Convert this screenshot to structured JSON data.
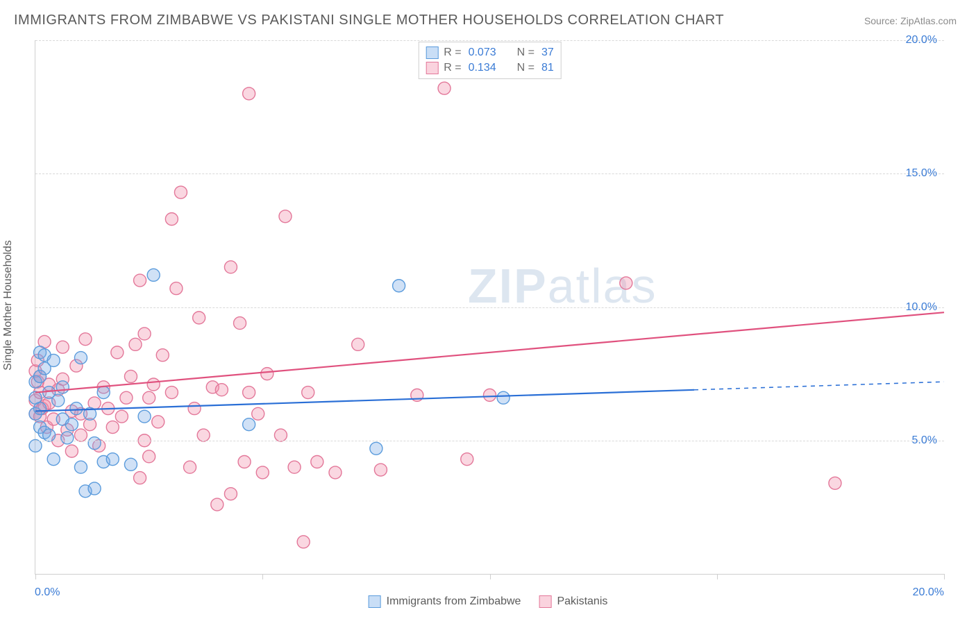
{
  "title": "IMMIGRANTS FROM ZIMBABWE VS PAKISTANI SINGLE MOTHER HOUSEHOLDS CORRELATION CHART",
  "source_label": "Source: ZipAtlas.com",
  "watermark_zip": "ZIP",
  "watermark_atlas": "atlas",
  "y_axis_title": "Single Mother Households",
  "chart": {
    "type": "scatter",
    "xlim": [
      0,
      20
    ],
    "ylim": [
      0,
      20
    ],
    "x_ticks": [
      0,
      5,
      10,
      15,
      20
    ],
    "x_tick_labels": [
      "0.0%",
      "",
      "",
      "",
      "20.0%"
    ],
    "y_ticks": [
      5,
      10,
      15,
      20
    ],
    "y_tick_labels": [
      "5.0%",
      "10.0%",
      "15.0%",
      "20.0%"
    ],
    "background_color": "#ffffff",
    "grid_color": "#d9d9d9",
    "axis_color": "#cfcfcf",
    "marker_radius": 9,
    "marker_stroke_width": 1.4,
    "trend_line_width": 2.2,
    "series": [
      {
        "name": "Immigrants from Zimbabwe",
        "fill": "rgba(120,170,230,0.35)",
        "stroke": "#5a9bdc",
        "R": "0.073",
        "N": "37",
        "trend": {
          "y_at_x0": 6.1,
          "y_at_x20": 7.2,
          "solid_until_x": 14.5,
          "color": "#2a6fd6"
        },
        "points": [
          [
            0.0,
            7.2
          ],
          [
            0.0,
            6.6
          ],
          [
            0.0,
            6.0
          ],
          [
            0.0,
            4.8
          ],
          [
            0.1,
            8.3
          ],
          [
            0.1,
            7.4
          ],
          [
            0.1,
            6.2
          ],
          [
            0.1,
            5.5
          ],
          [
            0.2,
            7.7
          ],
          [
            0.2,
            8.2
          ],
          [
            0.2,
            5.3
          ],
          [
            0.3,
            6.8
          ],
          [
            0.3,
            5.2
          ],
          [
            0.4,
            8.0
          ],
          [
            0.4,
            4.3
          ],
          [
            0.5,
            6.5
          ],
          [
            0.6,
            5.8
          ],
          [
            0.6,
            7.0
          ],
          [
            0.7,
            5.1
          ],
          [
            0.8,
            5.6
          ],
          [
            0.9,
            6.2
          ],
          [
            1.0,
            8.1
          ],
          [
            1.0,
            4.0
          ],
          [
            1.1,
            3.1
          ],
          [
            1.2,
            6.0
          ],
          [
            1.3,
            4.9
          ],
          [
            1.3,
            3.2
          ],
          [
            1.5,
            4.2
          ],
          [
            1.5,
            6.8
          ],
          [
            1.7,
            4.3
          ],
          [
            2.1,
            4.1
          ],
          [
            2.4,
            5.9
          ],
          [
            2.6,
            11.2
          ],
          [
            4.7,
            5.6
          ],
          [
            7.5,
            4.7
          ],
          [
            8.0,
            10.8
          ],
          [
            10.3,
            6.6
          ]
        ]
      },
      {
        "name": "Pakistanis",
        "fill": "rgba(240,140,170,0.35)",
        "stroke": "#e37799",
        "R": "0.134",
        "N": "81",
        "trend": {
          "y_at_x0": 6.8,
          "y_at_x20": 9.8,
          "solid_until_x": 20,
          "color": "#e0517e"
        },
        "points": [
          [
            0.0,
            7.6
          ],
          [
            0.0,
            6.5
          ],
          [
            0.0,
            6.0
          ],
          [
            0.05,
            8.0
          ],
          [
            0.05,
            7.2
          ],
          [
            0.1,
            6.8
          ],
          [
            0.1,
            5.9
          ],
          [
            0.1,
            7.4
          ],
          [
            0.15,
            6.2
          ],
          [
            0.2,
            8.7
          ],
          [
            0.2,
            6.3
          ],
          [
            0.25,
            5.5
          ],
          [
            0.3,
            7.1
          ],
          [
            0.3,
            6.4
          ],
          [
            0.4,
            5.8
          ],
          [
            0.5,
            6.9
          ],
          [
            0.5,
            5.0
          ],
          [
            0.6,
            7.3
          ],
          [
            0.6,
            8.5
          ],
          [
            0.7,
            5.4
          ],
          [
            0.8,
            6.1
          ],
          [
            0.8,
            4.6
          ],
          [
            0.9,
            7.8
          ],
          [
            1.0,
            6.0
          ],
          [
            1.0,
            5.2
          ],
          [
            1.1,
            8.8
          ],
          [
            1.2,
            5.6
          ],
          [
            1.3,
            6.4
          ],
          [
            1.4,
            4.8
          ],
          [
            1.5,
            7.0
          ],
          [
            1.6,
            6.2
          ],
          [
            1.7,
            5.5
          ],
          [
            1.8,
            8.3
          ],
          [
            1.9,
            5.9
          ],
          [
            2.0,
            6.6
          ],
          [
            2.1,
            7.4
          ],
          [
            2.2,
            8.6
          ],
          [
            2.3,
            11.0
          ],
          [
            2.3,
            3.6
          ],
          [
            2.4,
            9.0
          ],
          [
            2.4,
            5.0
          ],
          [
            2.5,
            4.4
          ],
          [
            2.5,
            6.6
          ],
          [
            2.6,
            7.1
          ],
          [
            2.7,
            5.7
          ],
          [
            2.8,
            8.2
          ],
          [
            3.0,
            13.3
          ],
          [
            3.0,
            6.8
          ],
          [
            3.1,
            10.7
          ],
          [
            3.2,
            14.3
          ],
          [
            3.4,
            4.0
          ],
          [
            3.5,
            6.2
          ],
          [
            3.6,
            9.6
          ],
          [
            3.7,
            5.2
          ],
          [
            3.9,
            7.0
          ],
          [
            4.0,
            2.6
          ],
          [
            4.1,
            6.9
          ],
          [
            4.3,
            3.0
          ],
          [
            4.3,
            11.5
          ],
          [
            4.5,
            9.4
          ],
          [
            4.6,
            4.2
          ],
          [
            4.7,
            6.8
          ],
          [
            4.7,
            18.0
          ],
          [
            4.9,
            6.0
          ],
          [
            5.0,
            3.8
          ],
          [
            5.1,
            7.5
          ],
          [
            5.5,
            13.4
          ],
          [
            5.7,
            4.0
          ],
          [
            5.9,
            1.2
          ],
          [
            6.0,
            6.8
          ],
          [
            6.2,
            4.2
          ],
          [
            6.6,
            3.8
          ],
          [
            7.1,
            8.6
          ],
          [
            7.6,
            3.9
          ],
          [
            8.4,
            6.7
          ],
          [
            9.0,
            18.2
          ],
          [
            9.5,
            4.3
          ],
          [
            10.0,
            6.7
          ],
          [
            13.0,
            10.9
          ],
          [
            17.6,
            3.4
          ],
          [
            5.4,
            5.2
          ]
        ]
      }
    ]
  },
  "legend_top": {
    "rows": [
      {
        "swatch": "blue",
        "r_label": "R =",
        "r_value": "0.073",
        "n_label": "N =",
        "n_value": "37"
      },
      {
        "swatch": "pink",
        "r_label": "R =",
        "r_value": "0.134",
        "n_label": "N =",
        "n_value": "81"
      }
    ]
  },
  "legend_bottom": {
    "items": [
      {
        "swatch": "blue",
        "label": "Immigrants from Zimbabwe"
      },
      {
        "swatch": "pink",
        "label": "Pakistanis"
      }
    ]
  },
  "colors": {
    "title": "#5a5a5a",
    "source": "#8a8a8a",
    "tick_label": "#3a7bd5"
  }
}
